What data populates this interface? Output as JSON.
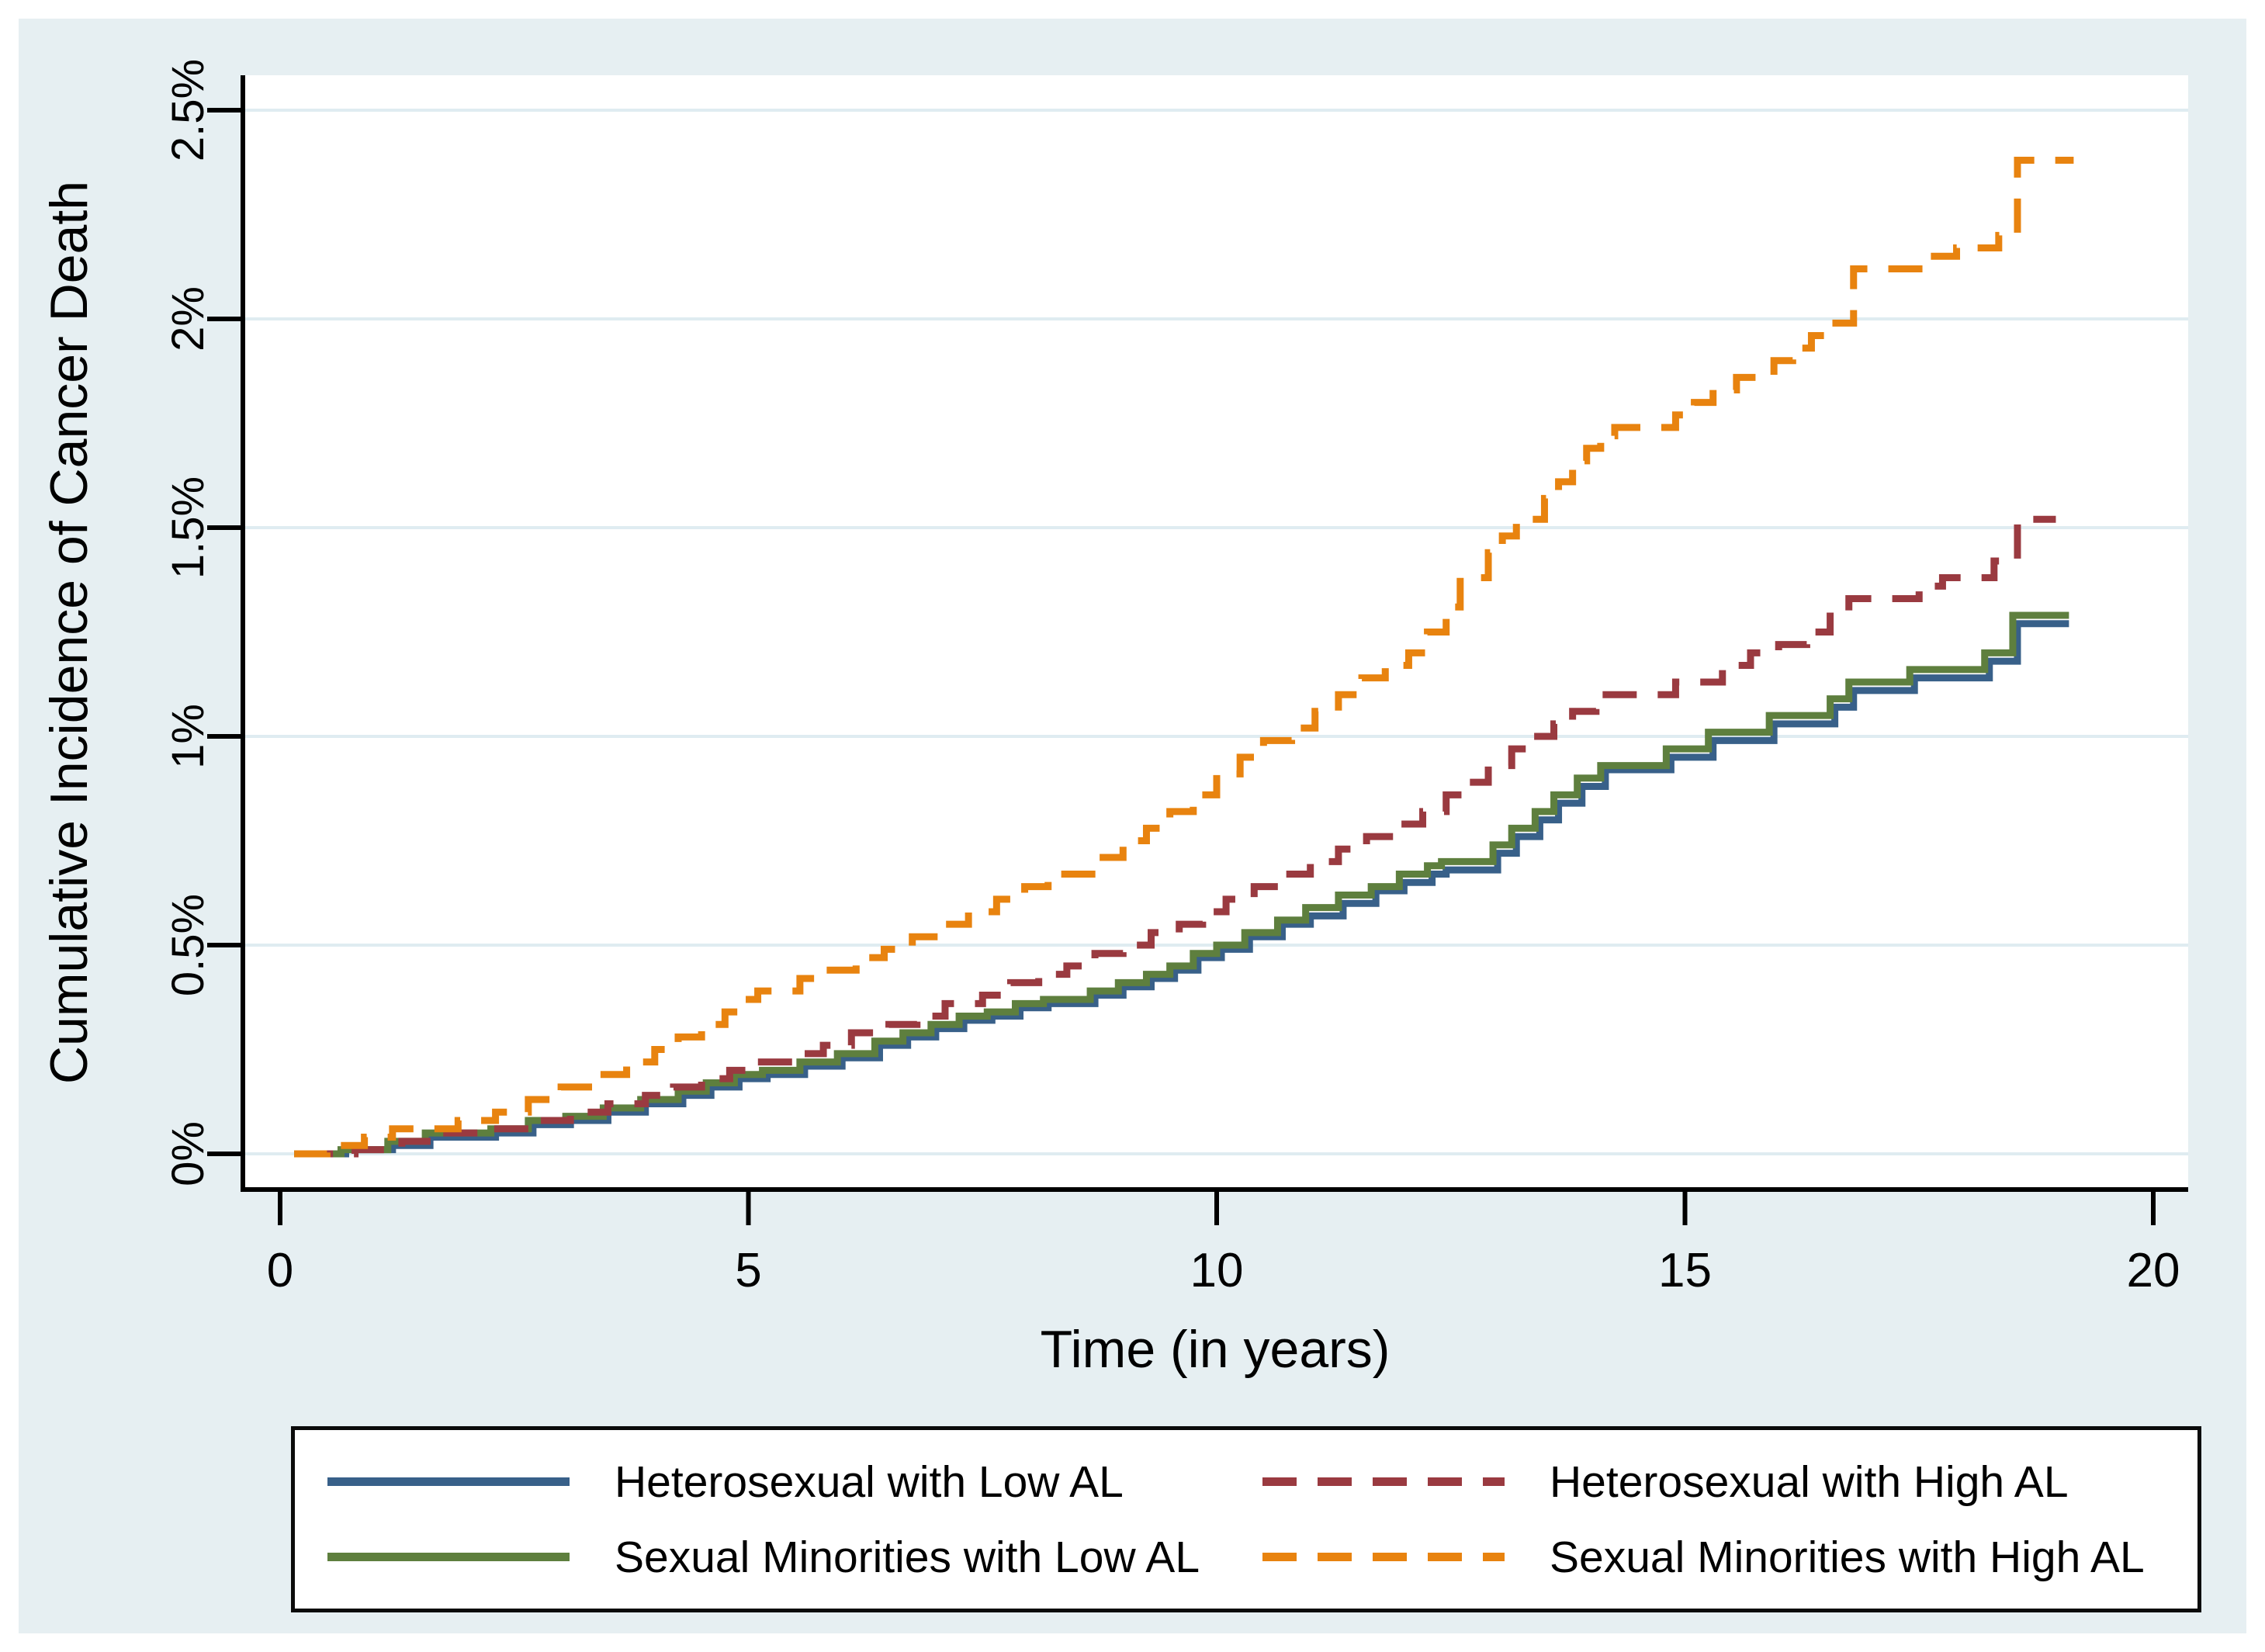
{
  "figure": {
    "background_color": "#e6eff2",
    "plot_background_color": "#ffffff",
    "gridline_color": "#dfecf1",
    "axis_color": "#000000"
  },
  "chart_data": {
    "type": "line",
    "subtype": "step-cumulative-incidence",
    "title": "",
    "xlabel": "Time (in years)",
    "ylabel": "Cumulative Incidence of Cancer Death",
    "xlim": [
      0,
      20
    ],
    "ylim": [
      0,
      2.5
    ],
    "grid": "horizontal",
    "legend_position": "bottom",
    "x_ticks": [
      {
        "v": 0,
        "label": "0"
      },
      {
        "v": 5,
        "label": "5"
      },
      {
        "v": 10,
        "label": "10"
      },
      {
        "v": 15,
        "label": "15"
      },
      {
        "v": 20,
        "label": "20"
      }
    ],
    "y_ticks": [
      {
        "v": 0,
        "label": "0%"
      },
      {
        "v": 0.5,
        "label": "0.5%"
      },
      {
        "v": 1,
        "label": "1%"
      },
      {
        "v": 1.5,
        "label": "1.5%"
      },
      {
        "v": 2,
        "label": "2%"
      },
      {
        "v": 2.5,
        "label": "2.5%"
      }
    ],
    "y_unit": "percent",
    "series": [
      {
        "name": "Heterosexual with Low AL",
        "color": "#386089",
        "dash": false,
        "end_x": 19.1,
        "points": [
          [
            0.15,
            0
          ],
          [
            0.7,
            0.01
          ],
          [
            1.2,
            0.02
          ],
          [
            1.6,
            0.04
          ],
          [
            2.3,
            0.05
          ],
          [
            2.7,
            0.07
          ],
          [
            3.1,
            0.08
          ],
          [
            3.5,
            0.1
          ],
          [
            3.9,
            0.12
          ],
          [
            4.3,
            0.14
          ],
          [
            4.6,
            0.16
          ],
          [
            4.9,
            0.18
          ],
          [
            5.2,
            0.19
          ],
          [
            5.6,
            0.21
          ],
          [
            6.0,
            0.23
          ],
          [
            6.4,
            0.26
          ],
          [
            6.7,
            0.28
          ],
          [
            7.0,
            0.3
          ],
          [
            7.3,
            0.32
          ],
          [
            7.6,
            0.33
          ],
          [
            7.9,
            0.35
          ],
          [
            8.2,
            0.36
          ],
          [
            8.7,
            0.38
          ],
          [
            9.0,
            0.4
          ],
          [
            9.3,
            0.42
          ],
          [
            9.55,
            0.44
          ],
          [
            9.8,
            0.47
          ],
          [
            10.05,
            0.49
          ],
          [
            10.35,
            0.52
          ],
          [
            10.7,
            0.55
          ],
          [
            11.0,
            0.57
          ],
          [
            11.35,
            0.6
          ],
          [
            11.7,
            0.63
          ],
          [
            12.0,
            0.65
          ],
          [
            12.3,
            0.67
          ],
          [
            12.45,
            0.68
          ],
          [
            13.0,
            0.72
          ],
          [
            13.2,
            0.76
          ],
          [
            13.45,
            0.8
          ],
          [
            13.65,
            0.84
          ],
          [
            13.9,
            0.88
          ],
          [
            14.15,
            0.92
          ],
          [
            14.85,
            0.95
          ],
          [
            15.3,
            0.99
          ],
          [
            15.95,
            1.03
          ],
          [
            16.6,
            1.07
          ],
          [
            16.8,
            1.11
          ],
          [
            17.45,
            1.14
          ],
          [
            18.25,
            1.18
          ],
          [
            18.55,
            1.27
          ]
        ]
      },
      {
        "name": "Sexual Minorities with Low AL",
        "color": "#5e7f3e",
        "dash": false,
        "end_x": 19.1,
        "points": [
          [
            0.15,
            0
          ],
          [
            0.65,
            0.01
          ],
          [
            1.15,
            0.03
          ],
          [
            1.55,
            0.05
          ],
          [
            2.25,
            0.06
          ],
          [
            2.65,
            0.08
          ],
          [
            3.05,
            0.09
          ],
          [
            3.45,
            0.11
          ],
          [
            3.85,
            0.13
          ],
          [
            4.25,
            0.15
          ],
          [
            4.55,
            0.17
          ],
          [
            4.85,
            0.19
          ],
          [
            5.15,
            0.2
          ],
          [
            5.55,
            0.22
          ],
          [
            5.95,
            0.24
          ],
          [
            6.35,
            0.27
          ],
          [
            6.65,
            0.29
          ],
          [
            6.95,
            0.31
          ],
          [
            7.25,
            0.33
          ],
          [
            7.55,
            0.34
          ],
          [
            7.85,
            0.36
          ],
          [
            8.15,
            0.37
          ],
          [
            8.65,
            0.39
          ],
          [
            8.95,
            0.41
          ],
          [
            9.25,
            0.43
          ],
          [
            9.5,
            0.45
          ],
          [
            9.75,
            0.48
          ],
          [
            10.0,
            0.5
          ],
          [
            10.3,
            0.53
          ],
          [
            10.65,
            0.56
          ],
          [
            10.95,
            0.59
          ],
          [
            11.3,
            0.62
          ],
          [
            11.65,
            0.64
          ],
          [
            11.95,
            0.67
          ],
          [
            12.25,
            0.69
          ],
          [
            12.4,
            0.7
          ],
          [
            12.95,
            0.74
          ],
          [
            13.15,
            0.78
          ],
          [
            13.4,
            0.82
          ],
          [
            13.6,
            0.86
          ],
          [
            13.85,
            0.9
          ],
          [
            14.1,
            0.93
          ],
          [
            14.8,
            0.97
          ],
          [
            15.25,
            1.01
          ],
          [
            15.9,
            1.05
          ],
          [
            16.55,
            1.09
          ],
          [
            16.75,
            1.13
          ],
          [
            17.4,
            1.16
          ],
          [
            18.2,
            1.2
          ],
          [
            18.5,
            1.29
          ]
        ]
      },
      {
        "name": "Heterosexual with High AL",
        "color": "#9a3a40",
        "dash": true,
        "end_x": 18.96,
        "points": [
          [
            0.2,
            0
          ],
          [
            0.8,
            0.01
          ],
          [
            1.3,
            0.03
          ],
          [
            1.7,
            0.05
          ],
          [
            2.2,
            0.06
          ],
          [
            2.7,
            0.08
          ],
          [
            3.1,
            0.1
          ],
          [
            3.5,
            0.12
          ],
          [
            3.9,
            0.14
          ],
          [
            4.2,
            0.16
          ],
          [
            4.5,
            0.18
          ],
          [
            4.8,
            0.2
          ],
          [
            5.1,
            0.22
          ],
          [
            5.5,
            0.24
          ],
          [
            5.8,
            0.26
          ],
          [
            6.1,
            0.29
          ],
          [
            6.5,
            0.31
          ],
          [
            6.8,
            0.33
          ],
          [
            7.1,
            0.36
          ],
          [
            7.5,
            0.38
          ],
          [
            7.8,
            0.41
          ],
          [
            8.1,
            0.43
          ],
          [
            8.4,
            0.45
          ],
          [
            8.7,
            0.48
          ],
          [
            9.0,
            0.5
          ],
          [
            9.3,
            0.53
          ],
          [
            9.6,
            0.55
          ],
          [
            9.85,
            0.58
          ],
          [
            10.1,
            0.61
          ],
          [
            10.4,
            0.64
          ],
          [
            10.7,
            0.67
          ],
          [
            11.0,
            0.7
          ],
          [
            11.3,
            0.73
          ],
          [
            11.6,
            0.76
          ],
          [
            11.9,
            0.79
          ],
          [
            12.2,
            0.82
          ],
          [
            12.45,
            0.86
          ],
          [
            12.7,
            0.89
          ],
          [
            12.9,
            0.93
          ],
          [
            13.15,
            0.97
          ],
          [
            13.35,
            1.0
          ],
          [
            13.6,
            1.03
          ],
          [
            13.8,
            1.06
          ],
          [
            14.05,
            1.1
          ],
          [
            14.9,
            1.13
          ],
          [
            15.4,
            1.17
          ],
          [
            15.7,
            1.2
          ],
          [
            16.0,
            1.22
          ],
          [
            16.3,
            1.25
          ],
          [
            16.55,
            1.3
          ],
          [
            16.75,
            1.33
          ],
          [
            17.5,
            1.36
          ],
          [
            17.75,
            1.38
          ],
          [
            18.3,
            1.42
          ],
          [
            18.55,
            1.52
          ]
        ]
      },
      {
        "name": "Sexual Minorities with High AL",
        "color": "#e8830f",
        "dash": true,
        "end_x": 19.15,
        "points": [
          [
            0.15,
            0
          ],
          [
            0.5,
            0.02
          ],
          [
            0.9,
            0.04
          ],
          [
            1.2,
            0.06
          ],
          [
            1.9,
            0.08
          ],
          [
            2.3,
            0.1
          ],
          [
            2.65,
            0.13
          ],
          [
            3.0,
            0.16
          ],
          [
            3.35,
            0.19
          ],
          [
            3.7,
            0.22
          ],
          [
            4.0,
            0.25
          ],
          [
            4.25,
            0.28
          ],
          [
            4.5,
            0.31
          ],
          [
            4.75,
            0.34
          ],
          [
            4.95,
            0.37
          ],
          [
            5.1,
            0.39
          ],
          [
            5.55,
            0.42
          ],
          [
            5.8,
            0.44
          ],
          [
            6.15,
            0.47
          ],
          [
            6.45,
            0.49
          ],
          [
            6.75,
            0.52
          ],
          [
            7.05,
            0.55
          ],
          [
            7.35,
            0.58
          ],
          [
            7.65,
            0.61
          ],
          [
            7.95,
            0.64
          ],
          [
            8.2,
            0.67
          ],
          [
            8.75,
            0.71
          ],
          [
            9.0,
            0.75
          ],
          [
            9.25,
            0.78
          ],
          [
            9.5,
            0.82
          ],
          [
            9.75,
            0.86
          ],
          [
            10.0,
            0.91
          ],
          [
            10.25,
            0.95
          ],
          [
            10.5,
            0.99
          ],
          [
            10.8,
            1.02
          ],
          [
            11.05,
            1.06
          ],
          [
            11.3,
            1.1
          ],
          [
            11.55,
            1.14
          ],
          [
            11.8,
            1.17
          ],
          [
            12.05,
            1.2
          ],
          [
            12.25,
            1.25
          ],
          [
            12.45,
            1.31
          ],
          [
            12.6,
            1.38
          ],
          [
            12.9,
            1.44
          ],
          [
            13.05,
            1.48
          ],
          [
            13.2,
            1.52
          ],
          [
            13.5,
            1.57
          ],
          [
            13.65,
            1.61
          ],
          [
            13.8,
            1.66
          ],
          [
            13.95,
            1.69
          ],
          [
            14.1,
            1.72
          ],
          [
            14.25,
            1.74
          ],
          [
            14.9,
            1.77
          ],
          [
            15.1,
            1.8
          ],
          [
            15.3,
            1.83
          ],
          [
            15.55,
            1.86
          ],
          [
            15.95,
            1.9
          ],
          [
            16.15,
            1.93
          ],
          [
            16.35,
            1.96
          ],
          [
            16.5,
            1.99
          ],
          [
            16.8,
            2.12
          ],
          [
            17.6,
            2.15
          ],
          [
            17.9,
            2.17
          ],
          [
            18.35,
            2.2
          ],
          [
            18.55,
            2.38
          ]
        ]
      }
    ]
  },
  "legend": {
    "order": [
      0,
      2,
      1,
      3
    ]
  }
}
